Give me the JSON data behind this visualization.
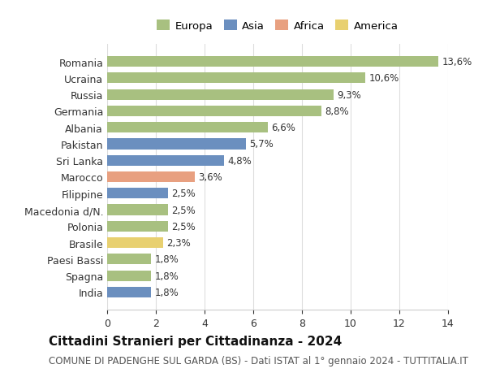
{
  "categories": [
    "Romania",
    "Ucraina",
    "Russia",
    "Germania",
    "Albania",
    "Pakistan",
    "Sri Lanka",
    "Marocco",
    "Filippine",
    "Macedonia d/N.",
    "Polonia",
    "Brasile",
    "Paesi Bassi",
    "Spagna",
    "India"
  ],
  "values": [
    13.6,
    10.6,
    9.3,
    8.8,
    6.6,
    5.7,
    4.8,
    3.6,
    2.5,
    2.5,
    2.5,
    2.3,
    1.8,
    1.8,
    1.8
  ],
  "labels": [
    "13,6%",
    "10,6%",
    "9,3%",
    "8,8%",
    "6,6%",
    "5,7%",
    "4,8%",
    "3,6%",
    "2,5%",
    "2,5%",
    "2,5%",
    "2,3%",
    "1,8%",
    "1,8%",
    "1,8%"
  ],
  "continents": [
    "Europa",
    "Europa",
    "Europa",
    "Europa",
    "Europa",
    "Asia",
    "Asia",
    "Africa",
    "Asia",
    "Europa",
    "Europa",
    "America",
    "Europa",
    "Europa",
    "Asia"
  ],
  "continent_colors": {
    "Europa": "#a8c080",
    "Asia": "#6b8fbf",
    "Africa": "#e8a080",
    "America": "#e8d070"
  },
  "legend_order": [
    "Europa",
    "Asia",
    "Africa",
    "America"
  ],
  "title": "Cittadini Stranieri per Cittadinanza - 2024",
  "subtitle": "COMUNE DI PADENGHE SUL GARDA (BS) - Dati ISTAT al 1° gennaio 2024 - TUTTITALIA.IT",
  "xlim": [
    0,
    14
  ],
  "xticks": [
    0,
    2,
    4,
    6,
    8,
    10,
    12,
    14
  ],
  "background_color": "#ffffff",
  "grid_color": "#dddddd",
  "bar_height": 0.65,
  "title_fontsize": 11,
  "subtitle_fontsize": 8.5,
  "tick_fontsize": 9,
  "label_fontsize": 8.5
}
